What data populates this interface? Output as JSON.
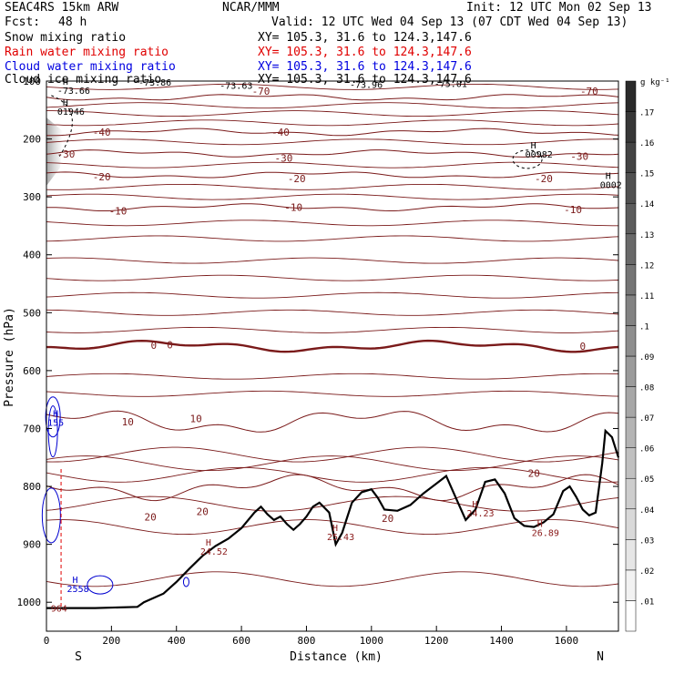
{
  "header": {
    "model": "SEAC4RS 15km ARW",
    "org": "NCAR/MMM",
    "init": "Init: 12 UTC Mon 02 Sep 13",
    "fcst_label": "Fcst:",
    "fcst_value": "48 h",
    "valid": "Valid: 12 UTC Wed 04 Sep 13 (07 CDT Wed 04 Sep 13)",
    "fields": [
      {
        "name": "Snow mixing ratio",
        "color": "#000000",
        "xy": "XY= 105.3, 31.6 to 124.3,147.6"
      },
      {
        "name": "Rain water mixing ratio",
        "color": "#e00000",
        "xy": "XY= 105.3, 31.6 to 124.3,147.6"
      },
      {
        "name": "Cloud water mixing ratio",
        "color": "#0000e0",
        "xy": "XY= 105.3, 31.6 to 124.3,147.6"
      },
      {
        "name": "Cloud ice mixing ratio",
        "color": "#000000",
        "xy": "XY= 105.3, 31.6 to 124.3,147.6"
      }
    ]
  },
  "chart_data": {
    "type": "contour",
    "xlabel": "Distance (km)",
    "ylabel": "Pressure (hPa)",
    "xlim": [
      0,
      1760
    ],
    "ylim": [
      1050,
      100
    ],
    "x_ticks": [
      0,
      200,
      400,
      600,
      800,
      1000,
      1200,
      1400,
      1600
    ],
    "y_ticks": [
      100,
      200,
      300,
      400,
      500,
      600,
      700,
      800,
      900,
      1000
    ],
    "x_end_labels": {
      "left": "S",
      "right": "N"
    },
    "colorbar": {
      "unit": "g kg⁻¹",
      "ticks": [
        ".01",
        ".02",
        ".03",
        ".04",
        ".05",
        ".06",
        ".07",
        ".08",
        ".09",
        ".1",
        ".11",
        ".12",
        ".13",
        ".14",
        ".15",
        ".16",
        ".17"
      ],
      "color_low": "#ffffff",
      "color_high": "#2a2a2a"
    },
    "temperature_contours": [
      {
        "label": "-70",
        "p": 128
      },
      {
        "label": "-40",
        "p": 188
      },
      {
        "label": "-30",
        "p": 225
      },
      {
        "label": "-20",
        "p": 262
      },
      {
        "label": "-10",
        "p": 318
      },
      {
        "label": "0",
        "p": 558
      },
      {
        "label": "10",
        "p": 688
      },
      {
        "label": "20",
        "p": 802
      }
    ],
    "temperature_labels": [
      {
        "text": "-70",
        "x": 660,
        "p": 117
      },
      {
        "text": "-70",
        "x": 1670,
        "p": 117
      },
      {
        "text": "-40",
        "x": 170,
        "p": 188
      },
      {
        "text": "-40",
        "x": 720,
        "p": 188
      },
      {
        "text": "-30",
        "x": 60,
        "p": 226
      },
      {
        "text": "-30",
        "x": 730,
        "p": 233
      },
      {
        "text": "-30",
        "x": 1640,
        "p": 230
      },
      {
        "text": "-20",
        "x": 170,
        "p": 265
      },
      {
        "text": "-20",
        "x": 770,
        "p": 268
      },
      {
        "text": "-20",
        "x": 1530,
        "p": 268
      },
      {
        "text": "-10",
        "x": 220,
        "p": 324
      },
      {
        "text": "-10",
        "x": 760,
        "p": 318
      },
      {
        "text": "-10",
        "x": 1620,
        "p": 322
      },
      {
        "text": "0",
        "x": 330,
        "p": 556
      },
      {
        "text": "0",
        "x": 380,
        "p": 555
      },
      {
        "text": "0",
        "x": 1650,
        "p": 558
      },
      {
        "text": "10",
        "x": 250,
        "p": 688
      },
      {
        "text": "10",
        "x": 460,
        "p": 683
      },
      {
        "text": "20",
        "x": 320,
        "p": 853
      },
      {
        "text": "20",
        "x": 480,
        "p": 843
      },
      {
        "text": "20",
        "x": 1050,
        "p": 855
      },
      {
        "text": "20",
        "x": 1500,
        "p": 777
      }
    ],
    "extrema": [
      {
        "marker": "H",
        "value": "-73.66",
        "x": 50,
        "p": 122
      },
      {
        "marker": "",
        "value": "-73.86",
        "x": 300,
        "p": 108
      },
      {
        "marker": "",
        "value": "-73.63",
        "x": 550,
        "p": 113
      },
      {
        "marker": "",
        "value": "-73.96",
        "x": 950,
        "p": 112
      },
      {
        "marker": "",
        "value": "-75.01",
        "x": 1210,
        "p": 110
      },
      {
        "marker": "H",
        "value": "01946",
        "x": 50,
        "p": 158
      },
      {
        "marker": "H",
        "value": "00982",
        "x": 1490,
        "p": 232
      },
      {
        "marker": "H",
        "value": "0002",
        "x": 1720,
        "p": 285
      },
      {
        "marker": "H",
        "value": "155",
        "x": 20,
        "p": 695
      },
      {
        "marker": "H",
        "value": "24.52",
        "x": 490,
        "p": 918
      },
      {
        "marker": "H",
        "value": "25.43",
        "x": 880,
        "p": 893
      },
      {
        "marker": "H",
        "value": "24.23",
        "x": 1310,
        "p": 852
      },
      {
        "marker": "H",
        "value": "26.89",
        "x": 1510,
        "p": 886
      },
      {
        "marker": "H",
        "value": "2558",
        "x": 80,
        "p": 982
      },
      {
        "marker": "",
        "value": "964",
        "x": 30,
        "p": 1016
      }
    ],
    "terrain": {
      "x": [
        0,
        150,
        280,
        300,
        360,
        400,
        440,
        480,
        520,
        560,
        600,
        640,
        660,
        680,
        700,
        720,
        740,
        760,
        780,
        800,
        820,
        840,
        870,
        890,
        910,
        940,
        970,
        1000,
        1020,
        1040,
        1080,
        1120,
        1160,
        1200,
        1230,
        1260,
        1290,
        1320,
        1350,
        1380,
        1410,
        1440,
        1470,
        1500,
        1530,
        1560,
        1590,
        1610,
        1630,
        1650,
        1670,
        1690,
        1710,
        1720,
        1740,
        1760
      ],
      "p": [
        1010,
        1010,
        1008,
        1000,
        985,
        965,
        942,
        920,
        903,
        890,
        872,
        845,
        835,
        848,
        858,
        852,
        865,
        875,
        865,
        852,
        835,
        828,
        845,
        900,
        880,
        828,
        810,
        805,
        820,
        840,
        842,
        832,
        812,
        795,
        782,
        820,
        858,
        840,
        792,
        788,
        812,
        855,
        868,
        870,
        862,
        848,
        808,
        800,
        818,
        840,
        850,
        845,
        760,
        704,
        715,
        750
      ]
    }
  }
}
